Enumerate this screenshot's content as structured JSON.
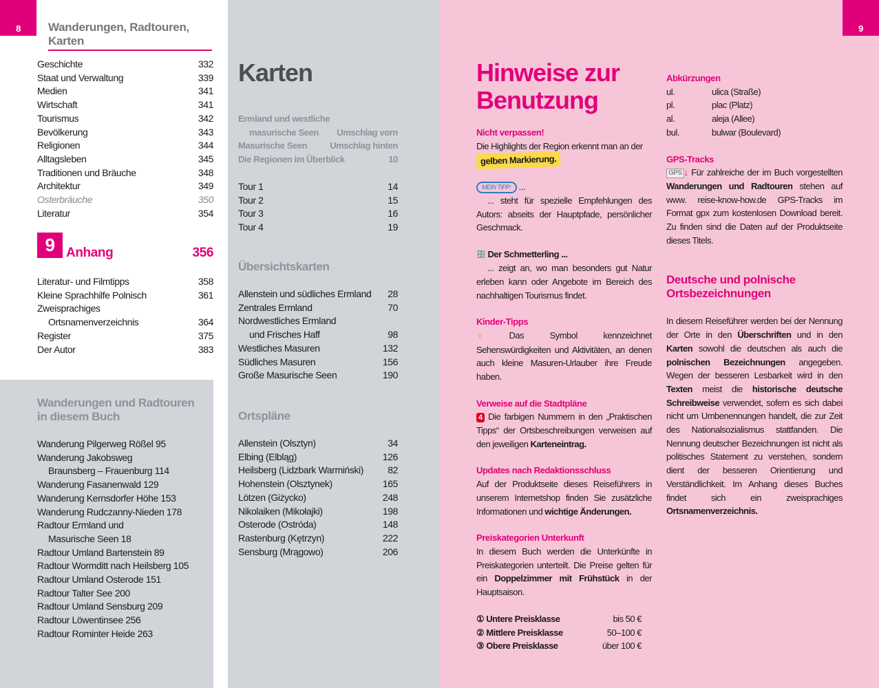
{
  "left_page": {
    "page_number": "8",
    "running_head": "Wanderungen, Radtouren, Karten",
    "toc": [
      {
        "label": "Geschichte",
        "page": "332"
      },
      {
        "label": "Staat und Verwaltung",
        "page": "339"
      },
      {
        "label": "Medien",
        "page": "341"
      },
      {
        "label": "Wirtschaft",
        "page": "341"
      },
      {
        "label": "Tourismus",
        "page": "342"
      },
      {
        "label": "Bevölkerung",
        "page": "343"
      },
      {
        "label": "Religionen",
        "page": "344"
      },
      {
        "label": "Alltagsleben",
        "page": "345"
      },
      {
        "label": "Traditionen und Bräuche",
        "page": "348"
      },
      {
        "label": "Architektur",
        "page": "349"
      },
      {
        "label": "Osterbräuche",
        "page": "350",
        "italic": true
      },
      {
        "label": "Literatur",
        "page": "354"
      }
    ],
    "chapter": {
      "number": "9",
      "title": "Anhang",
      "page": "356"
    },
    "appendix": [
      {
        "label": "Literatur- und Filmtipps",
        "page": "358"
      },
      {
        "label": "Kleine Sprachhilfe Polnisch",
        "page": "361"
      },
      {
        "label": "Zweisprachiges",
        "page": ""
      },
      {
        "label": "Ortsnamenverzeichnis",
        "page": "364",
        "indent": true
      },
      {
        "label": "Register",
        "page": "375"
      },
      {
        "label": "Der Autor",
        "page": "383"
      }
    ],
    "tours_box": {
      "title_line1": "Wanderungen und Radtouren",
      "title_line2": "in diesem Buch",
      "items": [
        {
          "label": "Wanderung Pilgerweg Rößel 95"
        },
        {
          "label": "Wanderung Jakobsweg"
        },
        {
          "label": "Braunsberg – Frauenburg 114",
          "indent": true
        },
        {
          "label": "Wanderung Fasanenwald 129"
        },
        {
          "label": "Wanderung Kernsdorfer Höhe 153"
        },
        {
          "label": "Wanderung Rudczanny-Nieden 178"
        },
        {
          "label": "Radtour Ermland und"
        },
        {
          "label": "Masurische Seen 18",
          "indent": true
        },
        {
          "label": "Radtour Umland Bartenstein 89"
        },
        {
          "label": "Radtour Wormditt nach Heilsberg 105"
        },
        {
          "label": "Radtour Umland Osterode 151"
        },
        {
          "label": "Radtour Talter See 200"
        },
        {
          "label": "Radtour Umland Sensburg 209"
        },
        {
          "label": "Radtour Löwentinsee 256"
        },
        {
          "label": "Radtour Rominter Heide 263"
        }
      ]
    }
  },
  "middle": {
    "title": "Karten",
    "cover_maps": [
      {
        "label": "Ermland und westliche",
        "page": ""
      },
      {
        "label": "masurische Seen",
        "page": "Umschlag vorn",
        "indent": true
      },
      {
        "label": "Masurische Seen",
        "page": "Umschlag hinten"
      },
      {
        "label": "Die Regionen im Überblick",
        "page": "10"
      }
    ],
    "tours": [
      {
        "label": "Tour 1",
        "page": "14"
      },
      {
        "label": "Tour 2",
        "page": "15"
      },
      {
        "label": "Tour 3",
        "page": "16"
      },
      {
        "label": "Tour 4",
        "page": "19"
      }
    ],
    "overview_title": "Übersichtskarten",
    "overview": [
      {
        "label": "Allenstein und südliches Ermland",
        "page": "28"
      },
      {
        "label": "Zentrales Ermland",
        "page": "70"
      },
      {
        "label": "Nordwestliches Ermland",
        "page": ""
      },
      {
        "label": "und Frisches Haff",
        "page": "98",
        "indent": true
      },
      {
        "label": "Westliches Masuren",
        "page": "132"
      },
      {
        "label": "Südliches Masuren",
        "page": "156"
      },
      {
        "label": "Große Masurische Seen",
        "page": "190"
      }
    ],
    "city_title": "Ortspläne",
    "city": [
      {
        "label": "Allenstein (Olsztyn)",
        "page": "34"
      },
      {
        "label": "Elbing (Elbląg)",
        "page": "126"
      },
      {
        "label": "Heilsberg (Lidzbark Warmiński)",
        "page": "82"
      },
      {
        "label": "Hohenstein (Olsztynek)",
        "page": "165"
      },
      {
        "label": "Lötzen (Giżycko)",
        "page": "248"
      },
      {
        "label": "Nikolaiken (Mikołajki)",
        "page": "198"
      },
      {
        "label": "Osterode (Ostróda)",
        "page": "148"
      },
      {
        "label": "Rastenburg (Kętrzyn)",
        "page": "222"
      },
      {
        "label": "Sensburg (Mrągowo)",
        "page": "206"
      }
    ]
  },
  "right_page": {
    "page_number": "9",
    "title_line1": "Hinweise zur",
    "title_line2": "Benutzung",
    "nicht_title": "Nicht verpassen!",
    "nicht_text": "Die Highlights der Region erkennt man an der",
    "nicht_highlight": "gelben Markierung.",
    "mein_tipp_badge": "MEIN TIPP:",
    "mein_tipp_dots": "...",
    "mein_tipp_text": "... steht für spezielle Empfehlungen des Autors: abseits der Hauptpfade, persönlicher Geschmack.",
    "schmetterling_title": "Der Schmetterling ...",
    "schmetterling_text": "... zeigt an, wo man besonders gut Natur erleben kann oder Angebote im Bereich des nachhaltigen Tourismus findet.",
    "kinder_title": "Kinder-Tipps",
    "kinder_text": "Das Symbol kennzeichnet Sehenswürdigkeiten und Aktivitäten, an denen auch kleine Masuren-Urlauber ihre Freude haben.",
    "stadt_title": "Verweise auf die Stadtpläne",
    "stadt_badge": "4",
    "stadt_text": "Die farbigen Nummern in den „Praktischen Tipps“ der Ortsbeschreibungen verweisen auf den jeweiligen",
    "stadt_bold": "Karteneintrag.",
    "updates_title": "Updates nach Redaktionsschluss",
    "updates_text": "Auf der Produktseite dieses Reiseführers in unserem Internetshop finden Sie zusätzliche Informationen und",
    "updates_bold": "wichtige Änderungen.",
    "preis_title": "Preiskategorien Unterkunft",
    "preis_text": "In diesem Buch werden die Unterkünfte in Preiskategorien unterteilt. Die Preise gelten für ein",
    "preis_bold": "Doppelzimmer mit Frühstück",
    "preis_text2": "in der Hauptsaison.",
    "preise": [
      {
        "num": "①",
        "label": "Untere Preisklasse",
        "price": "bis 50 €"
      },
      {
        "num": "②",
        "label": "Mittlere Preisklasse",
        "price": "50–100 €"
      },
      {
        "num": "③",
        "label": "Obere Preisklasse",
        "price": "über 100 €"
      }
    ],
    "abk_title": "Abkürzungen",
    "abk": [
      {
        "short": "ul.",
        "long": "ulica (Straße)"
      },
      {
        "short": "pl.",
        "long": "plac (Platz)"
      },
      {
        "short": "al.",
        "long": "aleja (Allee)"
      },
      {
        "short": "bul.",
        "long": "bulwar (Boulevard)"
      }
    ],
    "gps_title": "GPS-Tracks",
    "gps_badge": "GPS",
    "gps_text1": "Für zahlreiche der im Buch vorgestellten",
    "gps_bold": "Wanderungen und Radtouren",
    "gps_text2": "stehen auf www. reise-know-how.de GPS-Tracks im Format gpx zum kostenlosen Download bereit. Zu finden sind die Daten auf der Produktseite dieses Titels.",
    "ortsnamen_title1": "Deutsche und polnische",
    "ortsnamen_title2": "Ortsbezeichnungen",
    "ortsnamen_segments": [
      {
        "t": "In diesem Reiseführer werden bei der Nennung der Orte in den "
      },
      {
        "t": "Überschriften",
        "b": true
      },
      {
        "t": " und in den "
      },
      {
        "t": "Karten",
        "b": true
      },
      {
        "t": " sowohl die deutschen als auch die "
      },
      {
        "t": "polnischen Bezeichnungen",
        "b": true
      },
      {
        "t": " angegeben. Wegen der besseren Lesbarkeit wird in den "
      },
      {
        "t": "Texten",
        "b": true
      },
      {
        "t": " meist die "
      },
      {
        "t": "historische deutsche Schreibweise",
        "b": true
      },
      {
        "t": " verwendet, sofern es sich dabei nicht um Umbenennungen handelt, die zur Zeit des Nationalsozialismus stattfanden. Die Nennung deutscher Bezeichnungen ist nicht als politisches Statement zu verstehen, sondern dient der besseren Orientierung und Verständlichkeit. Im Anhang dieses Buches findet sich ein zweisprachiges "
      },
      {
        "t": "Ortsnamenverzeichnis.",
        "b": true
      }
    ]
  },
  "colors": {
    "accent": "#e2007a",
    "grey_panel": "#d1d5d9",
    "pink_page": "#f6c6d8",
    "highlight": "#fbd94a",
    "tipp_blue": "#2a7fc0",
    "butterfly_green": "#2e9a5a"
  }
}
